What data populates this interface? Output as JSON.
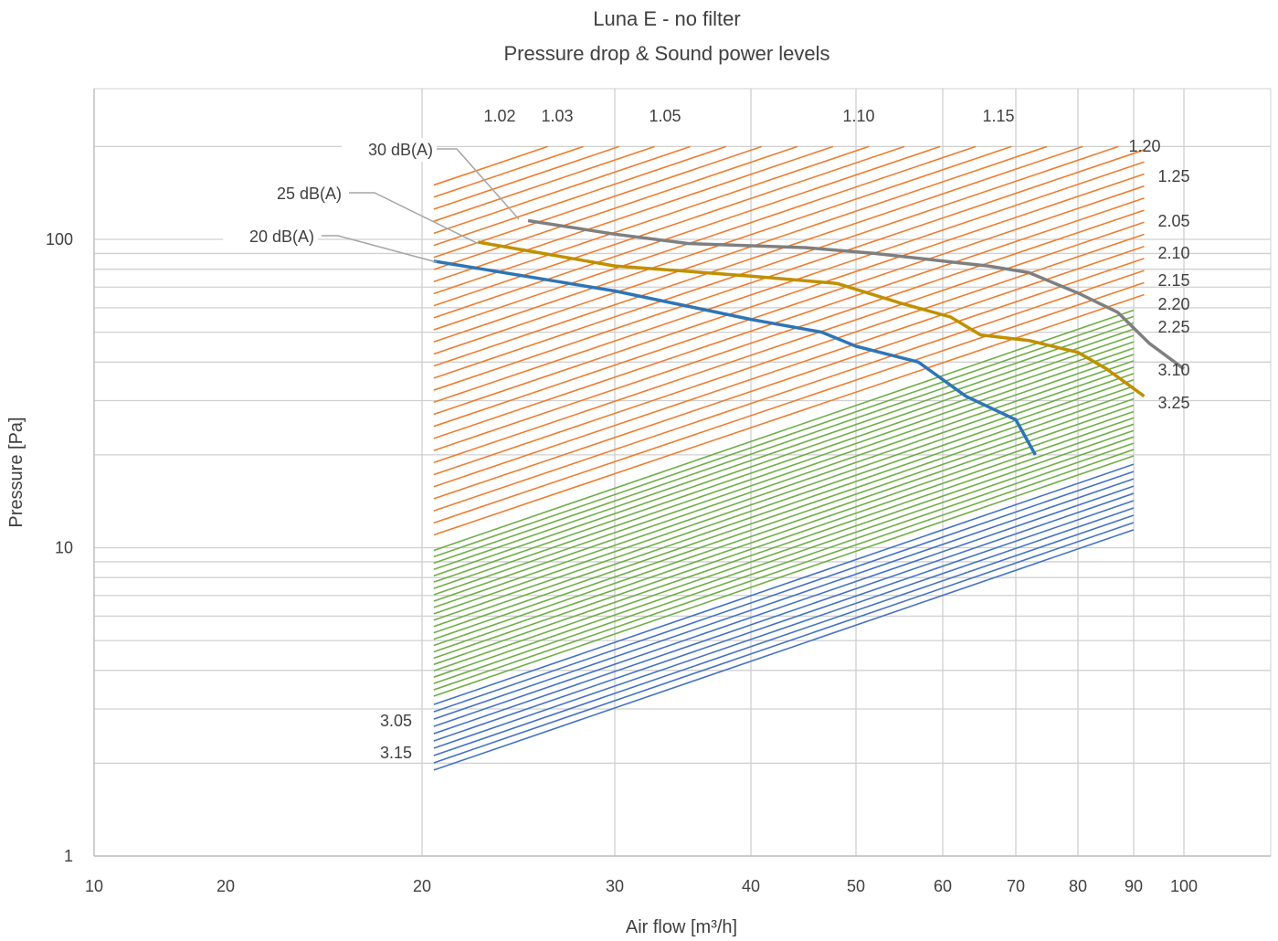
{
  "chart_data": {
    "type": "line",
    "title": "Luna E - no filter",
    "subtitle": "Pressure drop & Sound power levels",
    "xlabel": "Air flow [m³/h]",
    "ylabel": "Pressure [Pa]",
    "yscale": "log",
    "ylim": [
      1,
      200
    ],
    "x_tick_labels": [
      "10",
      "20",
      "20",
      "30",
      "40",
      "50",
      "60",
      "70",
      "80",
      "90",
      "100"
    ],
    "y_tick_labels": [
      "100",
      "10",
      "1"
    ],
    "grid": true,
    "top_labels": [
      "1.02",
      "1.03",
      "1.05",
      "1.10",
      "1.15"
    ],
    "right_labels": [
      "1.20",
      "1.25",
      "2.05",
      "2.10",
      "2.15",
      "2.20",
      "2.25",
      "3.10",
      "3.25"
    ],
    "left_labels": [
      "3.05",
      "3.15"
    ],
    "setting_groups": [
      {
        "group": "1.xx",
        "color": "#ED7D31",
        "count": 30,
        "x_range": [
          20.5,
          92
        ],
        "y_start_range": [
          11,
          150
        ]
      },
      {
        "group": "2.xx",
        "color": "#70AD47",
        "count": 24,
        "x_range": [
          20.5,
          90
        ],
        "y_start_range": [
          3.3,
          9.8
        ]
      },
      {
        "group": "3.xx",
        "color": "#4472C4",
        "count": 10,
        "x_range": [
          20.5,
          90
        ],
        "y_start_range": [
          1.9,
          3.1
        ]
      }
    ],
    "series": [
      {
        "name": "20 dB(A)",
        "color": "#2E75B6",
        "x": [
          20.5,
          30,
          40,
          46.5,
          50,
          57,
          63,
          70,
          73
        ],
        "y": [
          85,
          68,
          55,
          50,
          45,
          40,
          31,
          26,
          20
        ]
      },
      {
        "name": "25 dB(A)",
        "color": "#BF9000",
        "x": [
          22.5,
          30,
          40,
          48,
          55,
          61,
          65,
          72,
          80,
          85,
          92
        ],
        "y": [
          98,
          82,
          76,
          72,
          62,
          56,
          49,
          47,
          43,
          38,
          31
        ]
      },
      {
        "name": "30 dB(A)",
        "color": "#7F7F7F",
        "x": [
          25,
          30,
          35,
          45,
          52,
          62,
          66,
          72,
          80,
          87,
          93,
          100
        ],
        "y": [
          115,
          104,
          97,
          94,
          90,
          84,
          82,
          78,
          67,
          58,
          46,
          38
        ]
      }
    ]
  }
}
